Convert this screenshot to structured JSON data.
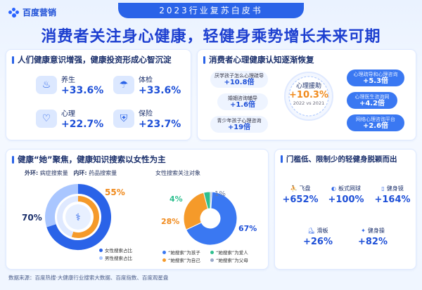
{
  "header": {
    "brand": "百度营销",
    "banner": "2023行业复苏白皮书",
    "headline": "消费者关注身心健康，轻健身乘势增长未来可期"
  },
  "health_card": {
    "title": "人们健康意识增强，健康投资形成心智沉淀",
    "items": [
      {
        "name": "养生",
        "value": "+33.6%",
        "icon": "bowl-icon"
      },
      {
        "name": "体检",
        "value": "+33.6%",
        "icon": "umbrella-icon"
      },
      {
        "name": "心理",
        "value": "+22.7%",
        "icon": "heart-icon"
      },
      {
        "name": "保险",
        "value": "+23.7%",
        "icon": "shield-icon"
      }
    ]
  },
  "mental_card": {
    "title": "消费者心理健康认知逐渐恢复",
    "center": {
      "label": "心理援助",
      "value": "+10.3%",
      "sub": "2022 vs 2021"
    },
    "left": [
      {
        "label": "厌学孩子怎么心理疏导",
        "value": "+10.8倍"
      },
      {
        "label": "婚姻咨询辅导",
        "value": "+1.6倍"
      },
      {
        "label": "青少年孩子心理咨询",
        "value": "+19倍"
      }
    ],
    "right": [
      {
        "label": "心理疏导和心理咨询",
        "value": "+5.3倍"
      },
      {
        "label": "心理医生咨询网",
        "value": "+4.2倍"
      },
      {
        "label": "网络心理咨询平台",
        "value": "+2.6倍"
      }
    ]
  },
  "female_card": {
    "title": "健康“她”聚焦，健康知识搜索以女性为主",
    "outer_label": "外环:",
    "outer_desc": "病症搜索量",
    "inner_label": "内环:",
    "inner_desc": "药品搜索量",
    "donut_chart": {
      "type": "donut",
      "outer_pct": "70%",
      "inner_pct": "55%",
      "outer_female": 70,
      "inner_female": 55,
      "legend": [
        "女性搜索占比",
        "男性搜索占比"
      ],
      "colors": {
        "female": "#2a63e8",
        "male": "#a9c6ff",
        "inner_female": "#f59a2a"
      }
    },
    "pie_title": "女性搜索关注对象",
    "pie_chart": {
      "type": "pie",
      "slices": [
        {
          "label": "“她搜索”为孩子",
          "value": 67,
          "text": "67%",
          "color": "#3a78f2"
        },
        {
          "label": "“她搜索”为自己",
          "value": 28,
          "text": "28%",
          "color": "#f59a2a"
        },
        {
          "label": "“她搜索”为爱人",
          "value": 4,
          "text": "4%",
          "color": "#2ebf8f"
        },
        {
          "label": "“她搜索”为父母",
          "value": 1,
          "text": "1%",
          "color": "#9aa8c8"
        }
      ]
    }
  },
  "fitness_card": {
    "title": "门槛低、限制少的轻健身脱颖而出",
    "items": [
      {
        "name": "飞盘",
        "value": "+652%",
        "icon": "frisbee-icon"
      },
      {
        "name": "板式网球",
        "value": "+100%",
        "icon": "paddle-icon"
      },
      {
        "name": "健身镜",
        "value": "+164%",
        "icon": "mirror-icon"
      },
      {
        "name": "滑板",
        "value": "+26%",
        "icon": "skateboard-icon"
      },
      {
        "name": "健身操",
        "value": "+82%",
        "icon": "aerobics-icon"
      }
    ]
  },
  "footer": "数据来源：百度热搜·大健康行业搜索大数据、百度指数、百度观星盘"
}
